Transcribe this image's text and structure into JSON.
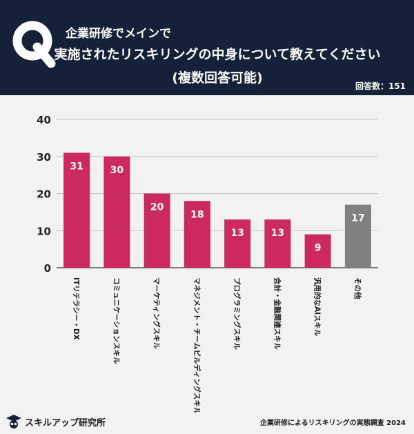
{
  "header": {
    "q_letter": "Q",
    "question_line1": "企業研修でメインで",
    "question_line2": "実施されたリスキリングの中身について教えてください",
    "question_line3": "(複数回答可能)",
    "respondents": "回答数：151"
  },
  "footer": {
    "logo_text": "スキルアップ研究所",
    "source": "企業研修によるリスキリングの実態調査 2024"
  },
  "colors": {
    "header_bg": "#152138",
    "bar_primary": "#cc2a5e",
    "bar_other": "#808080",
    "background": "#f2f2f2"
  },
  "chart_data": {
    "type": "bar",
    "categories": [
      "ITリテラシー・DX",
      "コミュニケーションスキル",
      "マーケティングスキル",
      "マネジメント・チームビルディングスキル",
      "プログラミングスキル",
      "会計・金融関連スキル",
      "汎用的なAIスキル",
      "その他"
    ],
    "values": [
      31,
      30,
      20,
      18,
      13,
      13,
      9,
      17
    ],
    "data_labels": [
      "31",
      "30",
      "20",
      "18",
      "13",
      "13",
      "9",
      "17"
    ],
    "yticks": [
      "0",
      "10",
      "20",
      "30",
      "40"
    ],
    "ylim": [
      0,
      40
    ],
    "grid": true,
    "legend": false
  }
}
